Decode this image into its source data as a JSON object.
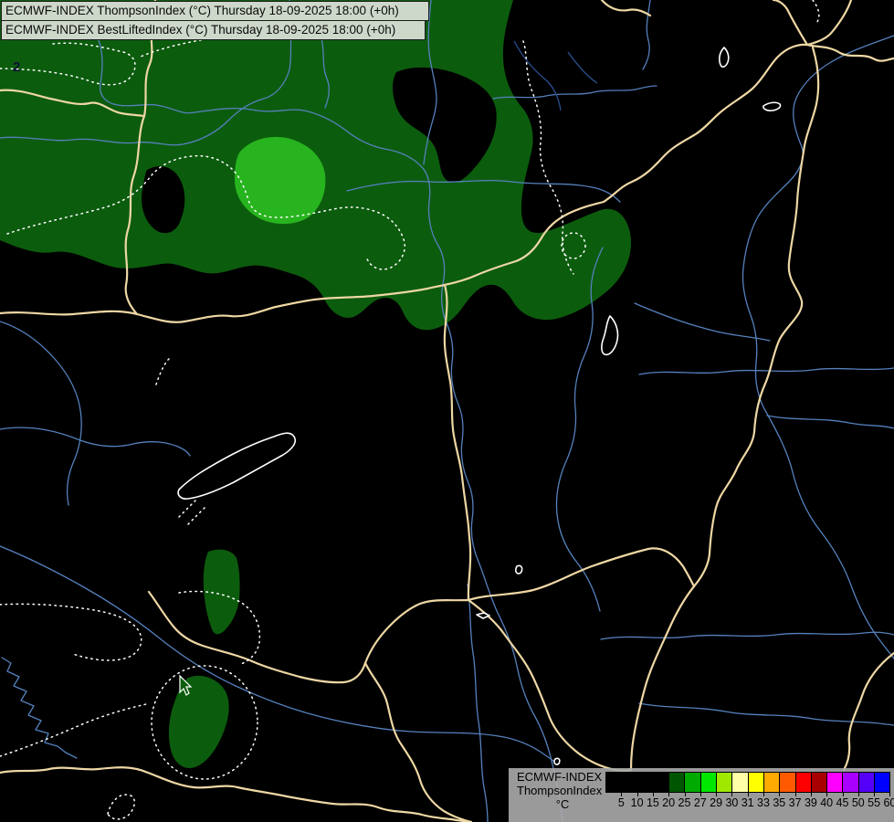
{
  "header": {
    "title_lines": [
      "ECMWF-INDEX ThompsonIndex (°C) Thursday 18-09-2025 18:00 (+0h)",
      "ECMWF-INDEX BestLiftedIndex (°C) Thursday 18-09-2025 18:00 (+0h)"
    ]
  },
  "map": {
    "contour_label": "2",
    "colors": {
      "background": "#000000",
      "index_20_25_region": "#0c5c0e",
      "index_25_27_region": "#27b41e",
      "country_border": "#eed7a4",
      "river": "#5581bd",
      "contour_line": "#ffffff",
      "lake_outline": "#ffffff"
    }
  },
  "legend": {
    "model_label": "ECMWF-INDEX",
    "index_label": "ThompsonIndex",
    "unit_label": "°C",
    "ticks": [
      5,
      10,
      15,
      20,
      25,
      27,
      29,
      30,
      31,
      33,
      35,
      37,
      39,
      40,
      45,
      50,
      55,
      60
    ],
    "colors": [
      "#000000",
      "#000000",
      "#000000",
      "#000000",
      "#005500",
      "#00aa00",
      "#00e800",
      "#a0e800",
      "#ffffa8",
      "#ffff00",
      "#ffaa00",
      "#ff5a00",
      "#ff0000",
      "#a80000",
      "#ff00ff",
      "#aa00ff",
      "#5500f8",
      "#0000ff"
    ]
  }
}
